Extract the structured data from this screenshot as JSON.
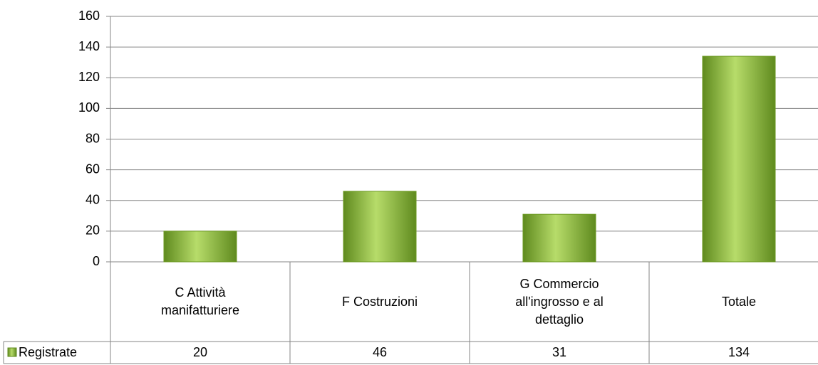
{
  "chart_data": {
    "type": "bar",
    "categories": [
      "C Attività manifatturiere",
      "F Costruzioni",
      "G Commercio all'ingrosso e al dettaglio",
      "Totale"
    ],
    "series": [
      {
        "name": "Registrate",
        "color": "#8db83a",
        "values": [
          20,
          46,
          31,
          134
        ]
      }
    ],
    "ylim": [
      0,
      160
    ],
    "yticks": [
      0,
      20,
      40,
      60,
      80,
      100,
      120,
      140,
      160
    ],
    "grid": true
  }
}
